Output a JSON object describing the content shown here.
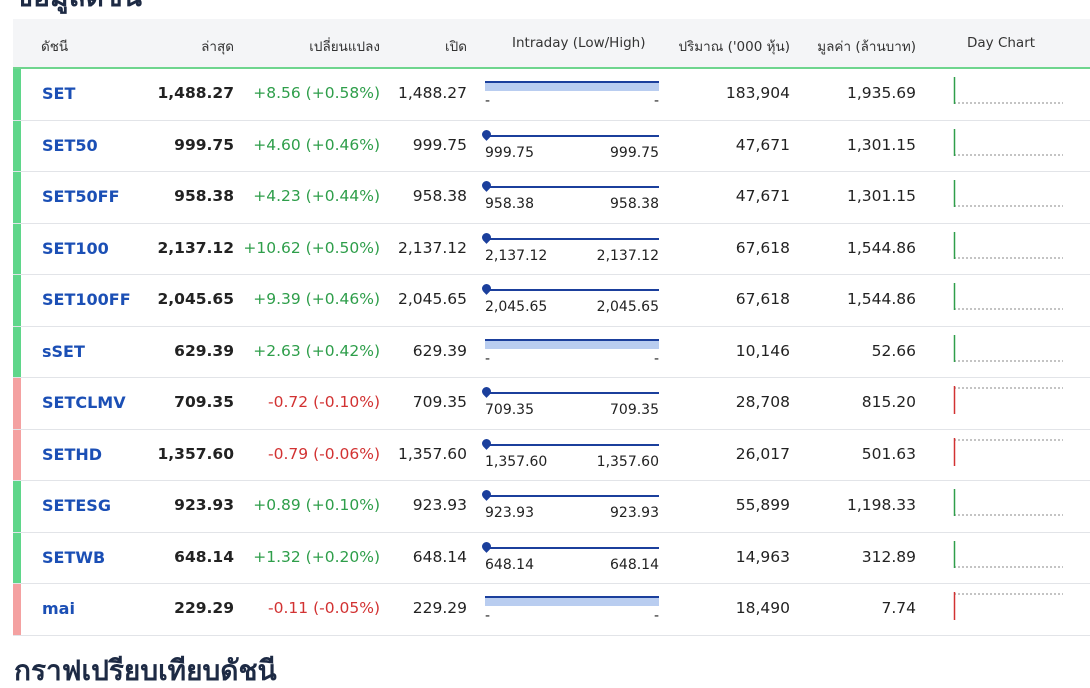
{
  "headings": {
    "top": "ข้อมูลดัชนี",
    "bottom": "กราฟเปรียบเทียบดัชนี"
  },
  "table": {
    "headers": {
      "index": "ดัชนี",
      "last": "ล่าสุด",
      "change": "เปลี่ยนแปลง",
      "open": "เปิด",
      "intraday": "Intraday (Low/High)",
      "volume": "ปริมาณ ('000 หุ้น)",
      "value": "มูลค่า (ล้านบาท)",
      "day_chart": "Day Chart"
    },
    "rows": [
      {
        "name": "SET",
        "last": "1,488.27",
        "change": "+8.56 (+0.58%)",
        "dir": "up",
        "open": "1,488.27",
        "low": "-",
        "high": "-",
        "range_style": "band",
        "volume": "183,904",
        "value": "1,935.69"
      },
      {
        "name": "SET50",
        "last": "999.75",
        "change": "+4.60 (+0.46%)",
        "dir": "up",
        "open": "999.75",
        "low": "999.75",
        "high": "999.75",
        "range_style": "marker",
        "volume": "47,671",
        "value": "1,301.15"
      },
      {
        "name": "SET50FF",
        "last": "958.38",
        "change": "+4.23 (+0.44%)",
        "dir": "up",
        "open": "958.38",
        "low": "958.38",
        "high": "958.38",
        "range_style": "marker",
        "volume": "47,671",
        "value": "1,301.15"
      },
      {
        "name": "SET100",
        "last": "2,137.12",
        "change": "+10.62 (+0.50%)",
        "dir": "up",
        "open": "2,137.12",
        "low": "2,137.12",
        "high": "2,137.12",
        "range_style": "marker",
        "volume": "67,618",
        "value": "1,544.86"
      },
      {
        "name": "SET100FF",
        "last": "2,045.65",
        "change": "+9.39 (+0.46%)",
        "dir": "up",
        "open": "2,045.65",
        "low": "2,045.65",
        "high": "2,045.65",
        "range_style": "marker",
        "volume": "67,618",
        "value": "1,544.86"
      },
      {
        "name": "sSET",
        "last": "629.39",
        "change": "+2.63 (+0.42%)",
        "dir": "up",
        "open": "629.39",
        "low": "-",
        "high": "-",
        "range_style": "band",
        "volume": "10,146",
        "value": "52.66"
      },
      {
        "name": "SETCLMV",
        "last": "709.35",
        "change": "-0.72 (-0.10%)",
        "dir": "down",
        "open": "709.35",
        "low": "709.35",
        "high": "709.35",
        "range_style": "marker",
        "volume": "28,708",
        "value": "815.20"
      },
      {
        "name": "SETHD",
        "last": "1,357.60",
        "change": "-0.79 (-0.06%)",
        "dir": "down",
        "open": "1,357.60",
        "low": "1,357.60",
        "high": "1,357.60",
        "range_style": "marker",
        "volume": "26,017",
        "value": "501.63"
      },
      {
        "name": "SETESG",
        "last": "923.93",
        "change": "+0.89 (+0.10%)",
        "dir": "up",
        "open": "923.93",
        "low": "923.93",
        "high": "923.93",
        "range_style": "marker",
        "volume": "55,899",
        "value": "1,198.33"
      },
      {
        "name": "SETWB",
        "last": "648.14",
        "change": "+1.32 (+0.20%)",
        "dir": "up",
        "open": "648.14",
        "low": "648.14",
        "high": "648.14",
        "range_style": "marker",
        "volume": "14,963",
        "value": "312.89"
      },
      {
        "name": "mai",
        "last": "229.29",
        "change": "-0.11 (-0.05%)",
        "dir": "down",
        "open": "229.29",
        "low": "-",
        "high": "-",
        "range_style": "band",
        "volume": "18,490",
        "value": "7.74"
      }
    ]
  },
  "colors": {
    "up": "#2e9e4a",
    "down": "#d23232",
    "up_bar": "#5fd68a",
    "down_bar": "#f4a1a1",
    "index_link": "#1b4fb5",
    "range": "#1b3f9c"
  }
}
